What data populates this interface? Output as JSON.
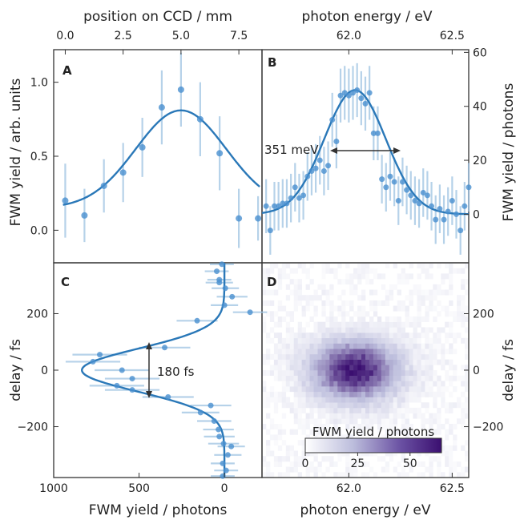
{
  "chart_data": [
    {
      "panel": "A",
      "type": "scatter",
      "title": "",
      "xlabel": "position on CCD / mm",
      "ylabel": "FWM yield / arb. units",
      "xlim": [
        -0.5,
        8.5
      ],
      "ylim": [
        -0.22,
        1.22
      ],
      "xticks": [
        0.0,
        2.5,
        5.0,
        7.5
      ],
      "yticks": [
        0.0,
        0.5,
        1.0
      ],
      "points": [
        {
          "x": 0.0,
          "y": 0.2,
          "err": 0.25
        },
        {
          "x": 0.83,
          "y": 0.1,
          "err": 0.18
        },
        {
          "x": 1.67,
          "y": 0.3,
          "err": 0.18
        },
        {
          "x": 2.5,
          "y": 0.39,
          "err": 0.2
        },
        {
          "x": 3.33,
          "y": 0.56,
          "err": 0.2
        },
        {
          "x": 4.17,
          "y": 0.83,
          "err": 0.25
        },
        {
          "x": 5.0,
          "y": 0.95,
          "err": 0.25
        },
        {
          "x": 5.83,
          "y": 0.75,
          "err": 0.25
        },
        {
          "x": 6.67,
          "y": 0.52,
          "err": 0.25
        },
        {
          "x": 7.5,
          "y": 0.08,
          "err": 0.2
        },
        {
          "x": 8.33,
          "y": 0.08,
          "err": 0.15
        }
      ],
      "fit": {
        "type": "gaussian",
        "center": 5.0,
        "sigma": 1.95,
        "amplitude": 0.66,
        "offset": 0.15
      }
    },
    {
      "panel": "B",
      "type": "scatter",
      "title": "",
      "xlabel": "photon energy / eV",
      "ylabel": "FWM yield / photons",
      "xlim": [
        61.58,
        62.58
      ],
      "ylim": [
        -18,
        61
      ],
      "xticks": [
        62.0,
        62.5
      ],
      "yticks": [
        0,
        20,
        40,
        60
      ],
      "annotation": "351 meV",
      "points": [
        {
          "x": 61.6,
          "y": 3,
          "err": 10
        },
        {
          "x": 61.62,
          "y": -6,
          "err": 9
        },
        {
          "x": 61.64,
          "y": 3,
          "err": 9
        },
        {
          "x": 61.66,
          "y": 3,
          "err": 9
        },
        {
          "x": 61.68,
          "y": 4,
          "err": 9
        },
        {
          "x": 61.7,
          "y": 4,
          "err": 9
        },
        {
          "x": 61.72,
          "y": 6,
          "err": 9
        },
        {
          "x": 61.74,
          "y": 10,
          "err": 9
        },
        {
          "x": 61.76,
          "y": 6,
          "err": 9
        },
        {
          "x": 61.78,
          "y": 7,
          "err": 9
        },
        {
          "x": 61.8,
          "y": 14,
          "err": 9
        },
        {
          "x": 61.82,
          "y": 16,
          "err": 9
        },
        {
          "x": 61.84,
          "y": 17,
          "err": 9
        },
        {
          "x": 61.86,
          "y": 20,
          "err": 9
        },
        {
          "x": 61.88,
          "y": 16,
          "err": 9
        },
        {
          "x": 61.9,
          "y": 18,
          "err": 9
        },
        {
          "x": 61.92,
          "y": 35,
          "err": 10
        },
        {
          "x": 61.94,
          "y": 27,
          "err": 10
        },
        {
          "x": 61.96,
          "y": 44,
          "err": 10
        },
        {
          "x": 61.98,
          "y": 45,
          "err": 10
        },
        {
          "x": 62.0,
          "y": 44,
          "err": 10
        },
        {
          "x": 62.02,
          "y": 45,
          "err": 10
        },
        {
          "x": 62.04,
          "y": 46,
          "err": 10
        },
        {
          "x": 62.06,
          "y": 43,
          "err": 10
        },
        {
          "x": 62.08,
          "y": 41,
          "err": 10
        },
        {
          "x": 62.1,
          "y": 45,
          "err": 10
        },
        {
          "x": 62.12,
          "y": 30,
          "err": 10
        },
        {
          "x": 62.14,
          "y": 30,
          "err": 10
        },
        {
          "x": 62.16,
          "y": 13,
          "err": 9
        },
        {
          "x": 62.18,
          "y": 10,
          "err": 9
        },
        {
          "x": 62.2,
          "y": 14,
          "err": 9
        },
        {
          "x": 62.22,
          "y": 12,
          "err": 9
        },
        {
          "x": 62.24,
          "y": 5,
          "err": 9
        },
        {
          "x": 62.26,
          "y": 12,
          "err": 9
        },
        {
          "x": 62.28,
          "y": 9,
          "err": 9
        },
        {
          "x": 62.3,
          "y": 7,
          "err": 9
        },
        {
          "x": 62.32,
          "y": 5,
          "err": 9
        },
        {
          "x": 62.34,
          "y": 4,
          "err": 9
        },
        {
          "x": 62.36,
          "y": 8,
          "err": 9
        },
        {
          "x": 62.38,
          "y": 7,
          "err": 9
        },
        {
          "x": 62.4,
          "y": 3,
          "err": 9
        },
        {
          "x": 62.42,
          "y": -2,
          "err": 9
        },
        {
          "x": 62.44,
          "y": 2,
          "err": 9
        },
        {
          "x": 62.46,
          "y": -2,
          "err": 9
        },
        {
          "x": 62.48,
          "y": 1,
          "err": 9
        },
        {
          "x": 62.5,
          "y": 5,
          "err": 9
        },
        {
          "x": 62.52,
          "y": 0,
          "err": 9
        },
        {
          "x": 62.54,
          "y": -6,
          "err": 9
        },
        {
          "x": 62.56,
          "y": 3,
          "err": 9
        },
        {
          "x": 62.58,
          "y": 10,
          "err": 9
        }
      ],
      "fit": {
        "type": "gaussian",
        "center": 62.03,
        "sigma": 0.149,
        "amplitude": 46,
        "offset": 0
      }
    },
    {
      "panel": "C",
      "type": "scatter",
      "title": "",
      "xlabel": "FWM yield / photons",
      "ylabel": "delay / fs",
      "xlim": [
        1000,
        -220
      ],
      "ylim": [
        -380,
        380
      ],
      "xticks": [
        1000,
        500,
        0
      ],
      "yticks": [
        -200,
        0,
        200
      ],
      "annotation": "180 fs",
      "points": [
        {
          "x": 15,
          "y": 375,
          "err": 70
        },
        {
          "x": 45,
          "y": 350,
          "err": 70
        },
        {
          "x": 30,
          "y": 310,
          "err": 80
        },
        {
          "x": -5,
          "y": 290,
          "err": 80
        },
        {
          "x": -45,
          "y": 260,
          "err": 90
        },
        {
          "x": 0,
          "y": 230,
          "err": 80
        },
        {
          "x": 30,
          "y": 320,
          "err": 70
        },
        {
          "x": -150,
          "y": 205,
          "err": 100
        },
        {
          "x": 160,
          "y": 175,
          "err": 120
        },
        {
          "x": 350,
          "y": 80,
          "err": 150
        },
        {
          "x": 730,
          "y": 55,
          "err": 160
        },
        {
          "x": 770,
          "y": 30,
          "err": 160
        },
        {
          "x": 600,
          "y": 0,
          "err": 160
        },
        {
          "x": 540,
          "y": -30,
          "err": 160
        },
        {
          "x": 630,
          "y": -55,
          "err": 160
        },
        {
          "x": 540,
          "y": -70,
          "err": 160
        },
        {
          "x": 330,
          "y": -95,
          "err": 150
        },
        {
          "x": 80,
          "y": -125,
          "err": 120
        },
        {
          "x": 140,
          "y": -150,
          "err": 110
        },
        {
          "x": 60,
          "y": -180,
          "err": 100
        },
        {
          "x": 35,
          "y": -210,
          "err": 90
        },
        {
          "x": 30,
          "y": -235,
          "err": 90
        },
        {
          "x": 5,
          "y": -260,
          "err": 90
        },
        {
          "x": -40,
          "y": -270,
          "err": 80
        },
        {
          "x": -20,
          "y": -300,
          "err": 80
        },
        {
          "x": 10,
          "y": -330,
          "err": 70
        },
        {
          "x": -10,
          "y": -355,
          "err": 70
        },
        {
          "x": 10,
          "y": -375,
          "err": 70
        }
      ],
      "fit": {
        "type": "gaussian",
        "center": 0,
        "sigma": 76,
        "amplitude": 835,
        "offset": 0
      }
    },
    {
      "panel": "D",
      "type": "heatmap",
      "title": "",
      "xlabel": "photon energy / eV",
      "ylabel": "delay / fs",
      "xlim": [
        61.58,
        62.58
      ],
      "ylim": [
        -380,
        380
      ],
      "xticks": [
        62.0,
        62.5
      ],
      "yticks": [
        -200,
        0,
        200
      ],
      "colorbar": {
        "label": "FWM yield / photons",
        "range": [
          0,
          65
        ],
        "ticks": [
          0,
          25,
          50
        ]
      },
      "peak": {
        "x": 62.03,
        "y": 0,
        "value": 62
      },
      "spread": {
        "sx": 0.15,
        "sy": 76
      }
    }
  ],
  "panels": {
    "a": {
      "letter": "A"
    },
    "b": {
      "letter": "B"
    },
    "c": {
      "letter": "C"
    },
    "d": {
      "letter": "D"
    }
  },
  "labels": {
    "top_left": "position on CCD / mm",
    "top_right": "photon energy / eV",
    "left_top": "FWM yield / arb. units",
    "right_top": "FWM yield / photons",
    "left_bottom": "delay / fs",
    "right_bottom": "delay / fs",
    "bottom_left": "FWM yield / photons",
    "bottom_right": "photon energy / eV",
    "width_anno": "351 meV",
    "delay_anno": "180 fs",
    "colorbar": "FWM yield / photons"
  },
  "colors": {
    "fit": "#2a78b8",
    "points": "#4a90cf",
    "errorbars": "#9ec3e2",
    "heatmap_high": "#3b0f70",
    "heatmap_low": "#ffffff"
  }
}
